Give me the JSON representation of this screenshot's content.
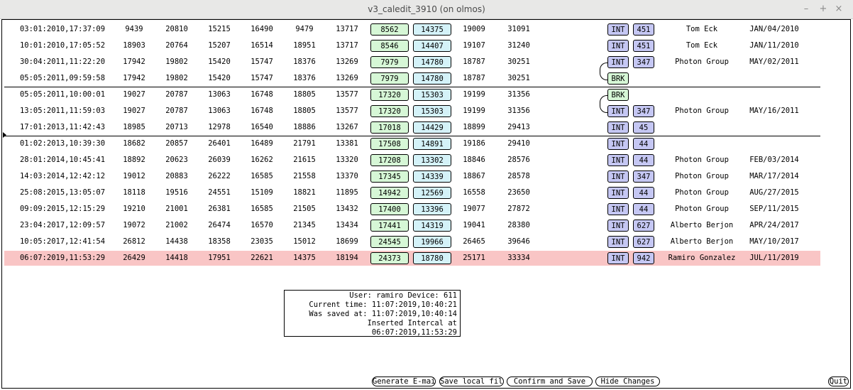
{
  "window": {
    "title": "v3_caledit_3910 (on olmos)",
    "minimize": "–",
    "maximize": "+",
    "close": "×"
  },
  "rows": [
    {
      "time": "03:01:2010,17:37:09",
      "v1": "9439",
      "v2": "20810",
      "v3": "15215",
      "v4": "16490",
      "v5": "9479",
      "v6": "13717",
      "v7": "8562",
      "v8": "14375",
      "v9": "19009",
      "v10": "31091",
      "type": "INT",
      "num": "451",
      "user": "Tom Eck",
      "date": "JAN/04/2010"
    },
    {
      "time": "10:01:2010,17:05:52",
      "v1": "18903",
      "v2": "20764",
      "v3": "15207",
      "v4": "16514",
      "v5": "18951",
      "v6": "13717",
      "v7": "8546",
      "v8": "14407",
      "v9": "19107",
      "v10": "31240",
      "type": "INT",
      "num": "451",
      "user": "Tom Eck",
      "date": "JAN/11/2010"
    },
    {
      "time": "30:04:2011,11:22:20",
      "v1": "17942",
      "v2": "19802",
      "v3": "15420",
      "v4": "15747",
      "v5": "18376",
      "v6": "13269",
      "v7": "7979",
      "v8": "14780",
      "v9": "18787",
      "v10": "30251",
      "type": "INT",
      "num": "347",
      "user": "Photon Group",
      "date": "MAY/02/2011"
    },
    {
      "time": "05:05:2011,09:59:58",
      "v1": "17942",
      "v2": "19802",
      "v3": "15420",
      "v4": "15747",
      "v5": "18376",
      "v6": "13269",
      "v7": "7979",
      "v8": "14780",
      "v9": "18787",
      "v10": "30251",
      "type": "BRK",
      "num": "",
      "user": "",
      "date": ""
    },
    {
      "time": "05:05:2011,10:00:01",
      "v1": "19027",
      "v2": "20787",
      "v3": "13063",
      "v4": "16748",
      "v5": "18805",
      "v6": "13577",
      "v7": "17320",
      "v8": "15303",
      "v9": "19199",
      "v10": "31356",
      "type": "BRK",
      "num": "",
      "user": "",
      "date": ""
    },
    {
      "time": "13:05:2011,11:59:03",
      "v1": "19027",
      "v2": "20787",
      "v3": "13063",
      "v4": "16748",
      "v5": "18805",
      "v6": "13577",
      "v7": "17320",
      "v8": "15303",
      "v9": "19199",
      "v10": "31356",
      "type": "INT",
      "num": "347",
      "user": "Photon Group",
      "date": "MAY/16/2011"
    },
    {
      "time": "17:01:2013,11:42:43",
      "v1": "18985",
      "v2": "20713",
      "v3": "12978",
      "v4": "16540",
      "v5": "18886",
      "v6": "13267",
      "v7": "17018",
      "v8": "14429",
      "v9": "18899",
      "v10": "29413",
      "type": "INT",
      "num": "45",
      "user": "",
      "date": ""
    },
    {
      "time": "01:02:2013,10:39:30",
      "v1": "18682",
      "v2": "20857",
      "v3": "26401",
      "v4": "16489",
      "v5": "21791",
      "v6": "13381",
      "v7": "17508",
      "v8": "14891",
      "v9": "19186",
      "v10": "29410",
      "type": "INT",
      "num": "44",
      "user": "",
      "date": ""
    },
    {
      "time": "28:01:2014,10:45:41",
      "v1": "18892",
      "v2": "20623",
      "v3": "26039",
      "v4": "16262",
      "v5": "21615",
      "v6": "13320",
      "v7": "17208",
      "v8": "13302",
      "v9": "18846",
      "v10": "28576",
      "type": "INT",
      "num": "44",
      "user": "Photon Group",
      "date": "FEB/03/2014"
    },
    {
      "time": "14:03:2014,12:42:12",
      "v1": "19012",
      "v2": "20883",
      "v3": "26222",
      "v4": "16585",
      "v5": "21558",
      "v6": "13370",
      "v7": "17345",
      "v8": "14339",
      "v9": "18867",
      "v10": "28578",
      "type": "INT",
      "num": "347",
      "user": "Photon Group",
      "date": "MAR/17/2014"
    },
    {
      "time": "25:08:2015,13:05:07",
      "v1": "18118",
      "v2": "19516",
      "v3": "24551",
      "v4": "15109",
      "v5": "18821",
      "v6": "11895",
      "v7": "14942",
      "v8": "12569",
      "v9": "16558",
      "v10": "23650",
      "type": "INT",
      "num": "44",
      "user": "Photon Group",
      "date": "AUG/27/2015"
    },
    {
      "time": "09:09:2015,12:15:29",
      "v1": "19210",
      "v2": "21001",
      "v3": "26381",
      "v4": "16585",
      "v5": "21505",
      "v6": "13432",
      "v7": "17400",
      "v8": "13396",
      "v9": "19077",
      "v10": "27872",
      "type": "INT",
      "num": "44",
      "user": "Photon Group",
      "date": "SEP/11/2015"
    },
    {
      "time": "23:04:2017,12:09:57",
      "v1": "19072",
      "v2": "21002",
      "v3": "26474",
      "v4": "16570",
      "v5": "21345",
      "v6": "13434",
      "v7": "17441",
      "v8": "14319",
      "v9": "19041",
      "v10": "28380",
      "type": "INT",
      "num": "627",
      "user": "Alberto Berjon",
      "date": "APR/24/2017"
    },
    {
      "time": "10:05:2017,12:41:54",
      "v1": "26812",
      "v2": "14438",
      "v3": "18358",
      "v4": "23035",
      "v5": "15012",
      "v6": "18699",
      "v7": "24545",
      "v8": "19966",
      "v9": "26465",
      "v10": "39646",
      "type": "INT",
      "num": "627",
      "user": "Alberto Berjon",
      "date": "MAY/10/2017"
    },
    {
      "time": "06:07:2019,11:53:29",
      "v1": "26429",
      "v2": "14418",
      "v3": "17951",
      "v4": "22621",
      "v5": "14375",
      "v6": "18194",
      "v7": "24373",
      "v8": "18780",
      "v9": "25171",
      "v10": "33334",
      "type": "INT",
      "num": "942",
      "user": "Ramiro Gonzalez",
      "date": "JUL/11/2019"
    }
  ],
  "info": {
    "line1": "User: ramiro Device: 611",
    "line2": "Current time: 11:07:2019,10:40:21",
    "line3": "Was saved at: 11:07:2019,10:40:14",
    "line4": "Inserted Intercal at 06:07:2019,11:53:29"
  },
  "buttons": {
    "email": "Generate E-mail",
    "save_local": "Save local file",
    "confirm": "Confirm and Save",
    "hide": "Hide Changes",
    "quit": "Quit"
  },
  "colors": {
    "green_box": "#d6f7d6",
    "cyan_box": "#d4f2f8",
    "int_box": "#c5c7f3",
    "highlight_row": "#f9c5c5"
  }
}
